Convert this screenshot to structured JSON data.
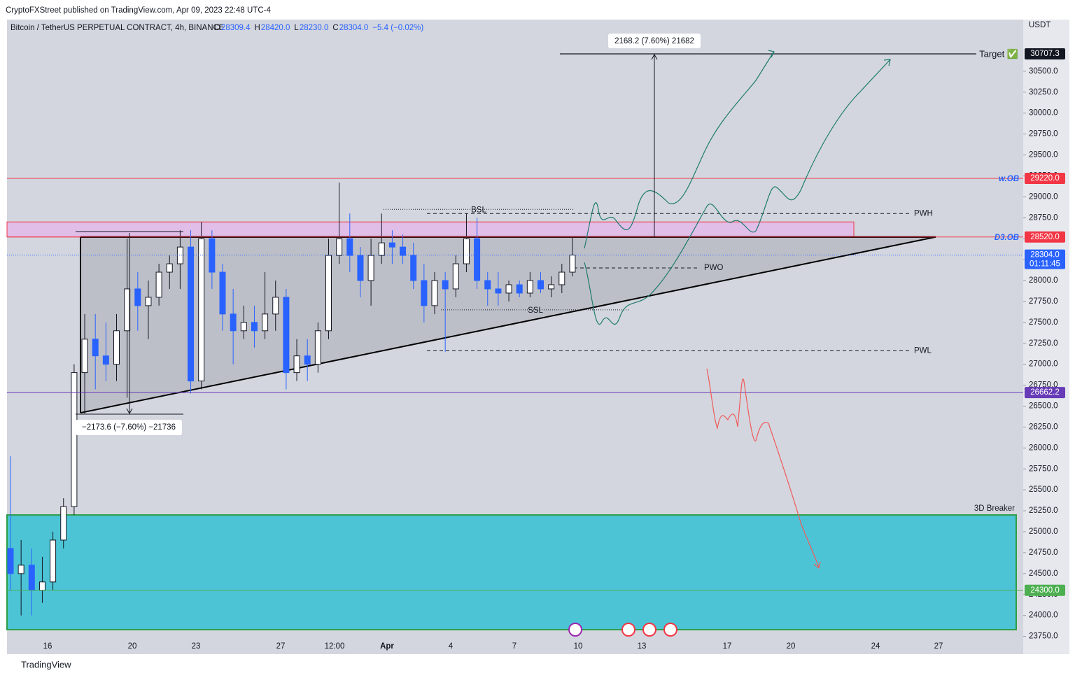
{
  "header": {
    "publisher": "CryptoFXStreet published on TradingView.com, Apr 09, 2023 22:48 UTC-4",
    "footer": "TradingView"
  },
  "chart_data": {
    "type": "candlestick",
    "title": "Bitcoin / TetherUS PERPETUAL CONTRACT, 4h, BINANCE",
    "ohlc_legend": [
      {
        "name": "O",
        "value": 28309.4,
        "label": "28309.4"
      },
      {
        "name": "H",
        "value": 28420,
        "label": "28420.0"
      },
      {
        "name": "L",
        "value": 28230,
        "label": "28230.0"
      },
      {
        "name": "C",
        "value": 28304,
        "label": "28304.0"
      }
    ],
    "change": "−5.4 (−0.02%)",
    "currency": "USDT",
    "xtick_labels": [
      "16",
      "20",
      "23",
      "27",
      "12:00",
      "Apr",
      "4",
      "7",
      "10",
      "13",
      "17",
      "20",
      "24",
      "27"
    ],
    "candles": {
      "open": [
        24800,
        24500,
        24600,
        24300,
        24400,
        24900,
        25300,
        26900,
        27300,
        27100,
        27000,
        27400,
        27900,
        27700,
        27800,
        28100,
        28200,
        28400,
        26800,
        28500,
        28100,
        27600,
        27400,
        27500,
        27400,
        27600,
        27800,
        26900,
        27100,
        27000,
        27400,
        28300,
        28500,
        28300,
        28000,
        28300,
        28450,
        28400,
        28300,
        28000,
        27700,
        28000,
        27900,
        28200,
        28500,
        28000,
        27900,
        27850,
        27950,
        27850,
        28000,
        27900,
        27950,
        28100
      ],
      "high": [
        25900,
        24900,
        24800,
        24700,
        25000,
        25400,
        27000,
        27600,
        27600,
        27500,
        27600,
        28500,
        28100,
        28000,
        28200,
        28300,
        28600,
        28600,
        28700,
        28600,
        28200,
        27900,
        27700,
        27700,
        28100,
        28000,
        27900,
        27300,
        27300,
        27500,
        28500,
        29170,
        28800,
        28400,
        28500,
        28800,
        28600,
        28550,
        28450,
        28200,
        28100,
        28100,
        28300,
        28800,
        28750,
        28100,
        28100,
        28000,
        28000,
        28100,
        28100,
        28050,
        28200,
        28530
      ],
      "low": [
        24300,
        24000,
        24000,
        24150,
        24300,
        24800,
        25200,
        26400,
        26700,
        26800,
        26800,
        26600,
        27400,
        27300,
        27700,
        27900,
        27900,
        26650,
        26700,
        27900,
        27400,
        27000,
        27300,
        27200,
        27300,
        27400,
        26700,
        26800,
        26800,
        26900,
        27300,
        28200,
        28100,
        27800,
        27700,
        28200,
        28200,
        28200,
        27900,
        27500,
        27600,
        27150,
        27800,
        28100,
        27900,
        27700,
        27700,
        27750,
        27800,
        27800,
        27850,
        27800,
        27850,
        28050
      ],
      "close": [
        24500,
        24600,
        24300,
        24400,
        24900,
        25300,
        26900,
        27300,
        27100,
        27000,
        27400,
        27900,
        27700,
        27800,
        28100,
        28200,
        28400,
        26800,
        28500,
        28100,
        27600,
        27400,
        27500,
        27400,
        27600,
        27800,
        26900,
        27100,
        27000,
        27400,
        28300,
        28500,
        28300,
        28000,
        28300,
        28450,
        28400,
        28300,
        28000,
        27700,
        28000,
        27900,
        28200,
        28500,
        28000,
        27900,
        27850,
        27950,
        27850,
        28000,
        27900,
        27950,
        28100,
        28304
      ]
    },
    "up_color": "#ffffff",
    "down_color": "#2962ff",
    "ylim": [
      23730,
      31100
    ],
    "yticks": [
      {
        "value": 23750,
        "label": "23750.0"
      },
      {
        "value": 24000,
        "label": "24000.0"
      },
      {
        "value": 24250,
        "label": "24250.0"
      },
      {
        "value": 24500,
        "label": "24500.0"
      },
      {
        "value": 24750,
        "label": "24750.0"
      },
      {
        "value": 25000,
        "label": "25000.0"
      },
      {
        "value": 25250,
        "label": "25250.0"
      },
      {
        "value": 25500,
        "label": "25500.0"
      },
      {
        "value": 25750,
        "label": "25750.0"
      },
      {
        "value": 26000,
        "label": "26000.0"
      },
      {
        "value": 26250,
        "label": "26250.0"
      },
      {
        "value": 26500,
        "label": "26500.0"
      },
      {
        "value": 26750,
        "label": "26750.0"
      },
      {
        "value": 27000,
        "label": "27000.0"
      },
      {
        "value": 27250,
        "label": "27250.0"
      },
      {
        "value": 27500,
        "label": "27500.0"
      },
      {
        "value": 27750,
        "label": "27750.0"
      },
      {
        "value": 28000,
        "label": "28000.0"
      },
      {
        "value": 28250,
        "label": "28250.0"
      },
      {
        "value": 28500,
        "label": "28500.0"
      },
      {
        "value": 28750,
        "label": "28750.0"
      },
      {
        "value": 29000,
        "label": "29000.0"
      },
      {
        "value": 29250,
        "label": "29250.0"
      },
      {
        "value": 29500,
        "label": "29500.0"
      },
      {
        "value": 29750,
        "label": "29750.0"
      },
      {
        "value": 30000,
        "label": "30000.0"
      },
      {
        "value": 30250,
        "label": "30250.0"
      },
      {
        "value": 30500,
        "label": "30500.0"
      }
    ],
    "levels": [
      {
        "name": "Target ✅",
        "value": 30707.3,
        "label": "30707.3",
        "color": "#131722"
      },
      {
        "name": "w.OB",
        "value": 29220,
        "label": "29220.0",
        "color": "#f23645"
      },
      {
        "name": "D3.OB",
        "value": 28520,
        "label": "28520.0",
        "color": "#f23645"
      },
      {
        "value": 28304,
        "label": "28304.0",
        "color": "#2962ff",
        "countdown": "01:11:45"
      },
      {
        "value": 26662.2,
        "label": "26662.2",
        "color": "#673ab7"
      },
      {
        "value": 24300,
        "label": "24300.0",
        "color": "#4caf50"
      }
    ],
    "dashed_levels": [
      {
        "name": "PWH",
        "value": 28800
      },
      {
        "name": "PWO",
        "value": 28150
      },
      {
        "name": "PWL",
        "value": 27160
      }
    ],
    "liquidity": [
      {
        "name": "BSL",
        "value": 28850
      },
      {
        "name": "SSL",
        "value": 27650
      }
    ],
    "zones": [
      {
        "from": 28520,
        "to": 28700,
        "color": "#e1bee7"
      },
      {
        "name": "3D Breaker",
        "from": 23830,
        "to": 25200,
        "color": "#4dc4d6"
      }
    ],
    "triangle": {
      "top": 28520,
      "bottom_start": 26420
    },
    "measures": [
      "2168.2 (7.60%) 21682",
      "−2173.6 (−7.60%) −21736"
    ]
  }
}
